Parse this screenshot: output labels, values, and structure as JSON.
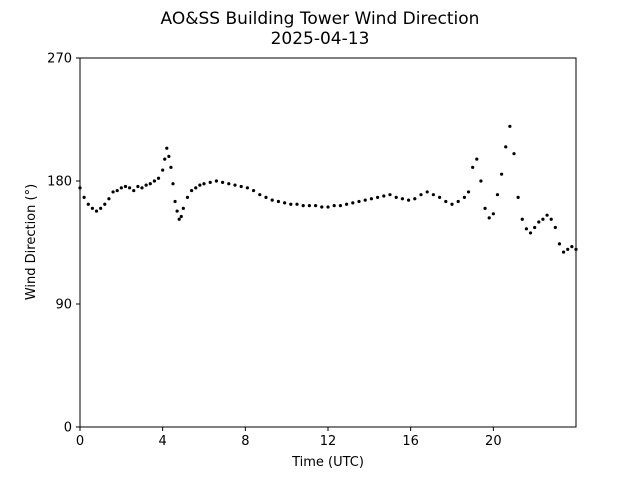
{
  "chart_data": {
    "type": "scatter",
    "title": "AO&SS Building Tower Wind Direction",
    "subtitle": "2025-04-13",
    "xlabel": "Time (UTC)",
    "ylabel": "Wind Direction (°)",
    "xlim": [
      0,
      24
    ],
    "ylim": [
      0,
      270
    ],
    "xticks": [
      0,
      4,
      8,
      12,
      16,
      20
    ],
    "xtick_labels": [
      "0",
      "4",
      "8",
      "12",
      "16",
      "20"
    ],
    "yticks": [
      0,
      90,
      180,
      270
    ],
    "ytick_labels": [
      "0",
      "90",
      "180",
      "270"
    ],
    "grid": false,
    "marker_color": "#000000",
    "series": [
      {
        "x": [
          0.0,
          0.2,
          0.4,
          0.6,
          0.8,
          1.0,
          1.2,
          1.4,
          1.6,
          1.8,
          2.0,
          2.2,
          2.4,
          2.6,
          2.8,
          3.0,
          3.2,
          3.4,
          3.6,
          3.8,
          4.0,
          4.1,
          4.2,
          4.3,
          4.4,
          4.5,
          4.6,
          4.7,
          4.8,
          4.9,
          5.0,
          5.2,
          5.4,
          5.6,
          5.8,
          6.0,
          6.3,
          6.6,
          6.9,
          7.2,
          7.5,
          7.8,
          8.1,
          8.4,
          8.7,
          9.0,
          9.3,
          9.6,
          9.9,
          10.2,
          10.5,
          10.8,
          11.1,
          11.4,
          11.7,
          12.0,
          12.3,
          12.6,
          12.9,
          13.2,
          13.5,
          13.8,
          14.1,
          14.4,
          14.7,
          15.0,
          15.3,
          15.6,
          15.9,
          16.2,
          16.5,
          16.8,
          17.1,
          17.4,
          17.7,
          18.0,
          18.3,
          18.6,
          18.8,
          19.0,
          19.2,
          19.4,
          19.6,
          19.8,
          20.0,
          20.2,
          20.4,
          20.6,
          20.8,
          21.0,
          21.2,
          21.4,
          21.6,
          21.8,
          22.0,
          22.2,
          22.4,
          22.6,
          22.8,
          23.0,
          23.2,
          23.4,
          23.6,
          23.8,
          24.0
        ],
        "y": [
          175,
          168,
          163,
          160,
          158,
          160,
          163,
          167,
          172,
          173,
          175,
          176,
          175,
          173,
          176,
          175,
          177,
          178,
          180,
          182,
          188,
          196,
          204,
          198,
          190,
          178,
          165,
          158,
          152,
          154,
          160,
          168,
          173,
          175,
          177,
          178,
          179,
          180,
          179,
          178,
          177,
          176,
          175,
          173,
          170,
          168,
          166,
          165,
          164,
          163,
          163,
          162,
          162,
          162,
          161,
          161,
          162,
          162,
          163,
          164,
          165,
          166,
          167,
          168,
          169,
          170,
          168,
          167,
          166,
          167,
          170,
          172,
          170,
          168,
          165,
          163,
          165,
          168,
          172,
          190,
          196,
          180,
          160,
          153,
          156,
          170,
          185,
          205,
          220,
          200,
          168,
          152,
          145,
          142,
          146,
          150,
          152,
          155,
          152,
          146,
          134,
          128,
          130,
          132,
          130
        ]
      }
    ]
  }
}
